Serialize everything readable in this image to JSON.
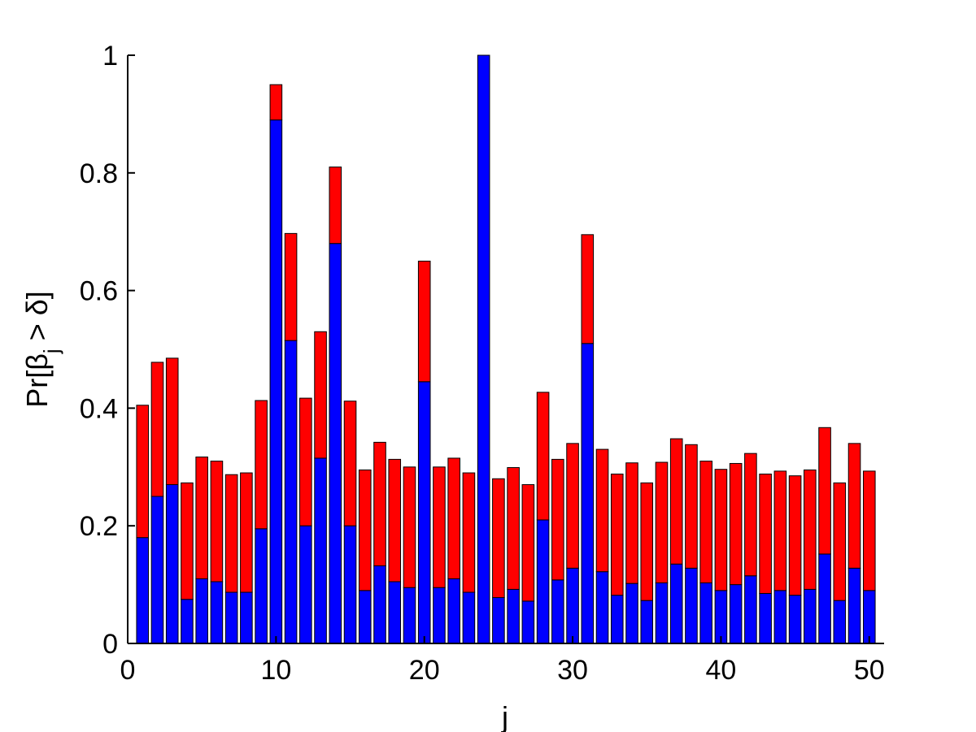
{
  "chart_data": {
    "type": "bar",
    "stacked": true,
    "xlabel": "j",
    "ylabel": "Pr[β_j > δ]",
    "ylabel_parts": {
      "prefix": "Pr[β",
      "sub": "j",
      "suffix": " > δ]"
    },
    "xlim": [
      0,
      51
    ],
    "ylim": [
      0,
      1
    ],
    "x_ticks": [
      0,
      10,
      20,
      30,
      40,
      50
    ],
    "y_ticks": [
      0,
      0.2,
      0.4,
      0.6,
      0.8,
      1
    ],
    "y_tick_labels": [
      "0",
      "0.2",
      "0.4",
      "0.6",
      "0.8",
      "1"
    ],
    "grid": false,
    "x": [
      1,
      2,
      3,
      4,
      5,
      6,
      7,
      8,
      9,
      10,
      11,
      12,
      13,
      14,
      15,
      16,
      17,
      18,
      19,
      20,
      21,
      22,
      23,
      24,
      25,
      26,
      27,
      28,
      29,
      30,
      31,
      32,
      33,
      34,
      35,
      36,
      37,
      38,
      39,
      40,
      41,
      42,
      43,
      44,
      45,
      46,
      47,
      48,
      49,
      50
    ],
    "series": [
      {
        "color": "#0000ff",
        "values": [
          0.18,
          0.25,
          0.27,
          0.075,
          0.11,
          0.105,
          0.087,
          0.087,
          0.195,
          0.89,
          0.515,
          0.2,
          0.315,
          0.68,
          0.2,
          0.09,
          0.132,
          0.105,
          0.095,
          0.445,
          0.095,
          0.11,
          0.087,
          1.0,
          0.078,
          0.092,
          0.072,
          0.21,
          0.108,
          0.128,
          0.51,
          0.122,
          0.082,
          0.102,
          0.073,
          0.103,
          0.135,
          0.128,
          0.103,
          0.09,
          0.1,
          0.115,
          0.085,
          0.09,
          0.082,
          0.092,
          0.152,
          0.073,
          0.128,
          0.09
        ]
      },
      {
        "color": "#ff0000",
        "values": [
          0.225,
          0.228,
          0.215,
          0.198,
          0.207,
          0.205,
          0.2,
          0.203,
          0.218,
          0.06,
          0.182,
          0.217,
          0.215,
          0.13,
          0.212,
          0.205,
          0.21,
          0.208,
          0.205,
          0.205,
          0.205,
          0.205,
          0.203,
          0.0,
          0.202,
          0.207,
          0.198,
          0.217,
          0.205,
          0.212,
          0.185,
          0.208,
          0.206,
          0.205,
          0.2,
          0.205,
          0.213,
          0.21,
          0.207,
          0.206,
          0.206,
          0.208,
          0.203,
          0.203,
          0.203,
          0.203,
          0.215,
          0.2,
          0.212,
          0.203
        ]
      }
    ]
  }
}
